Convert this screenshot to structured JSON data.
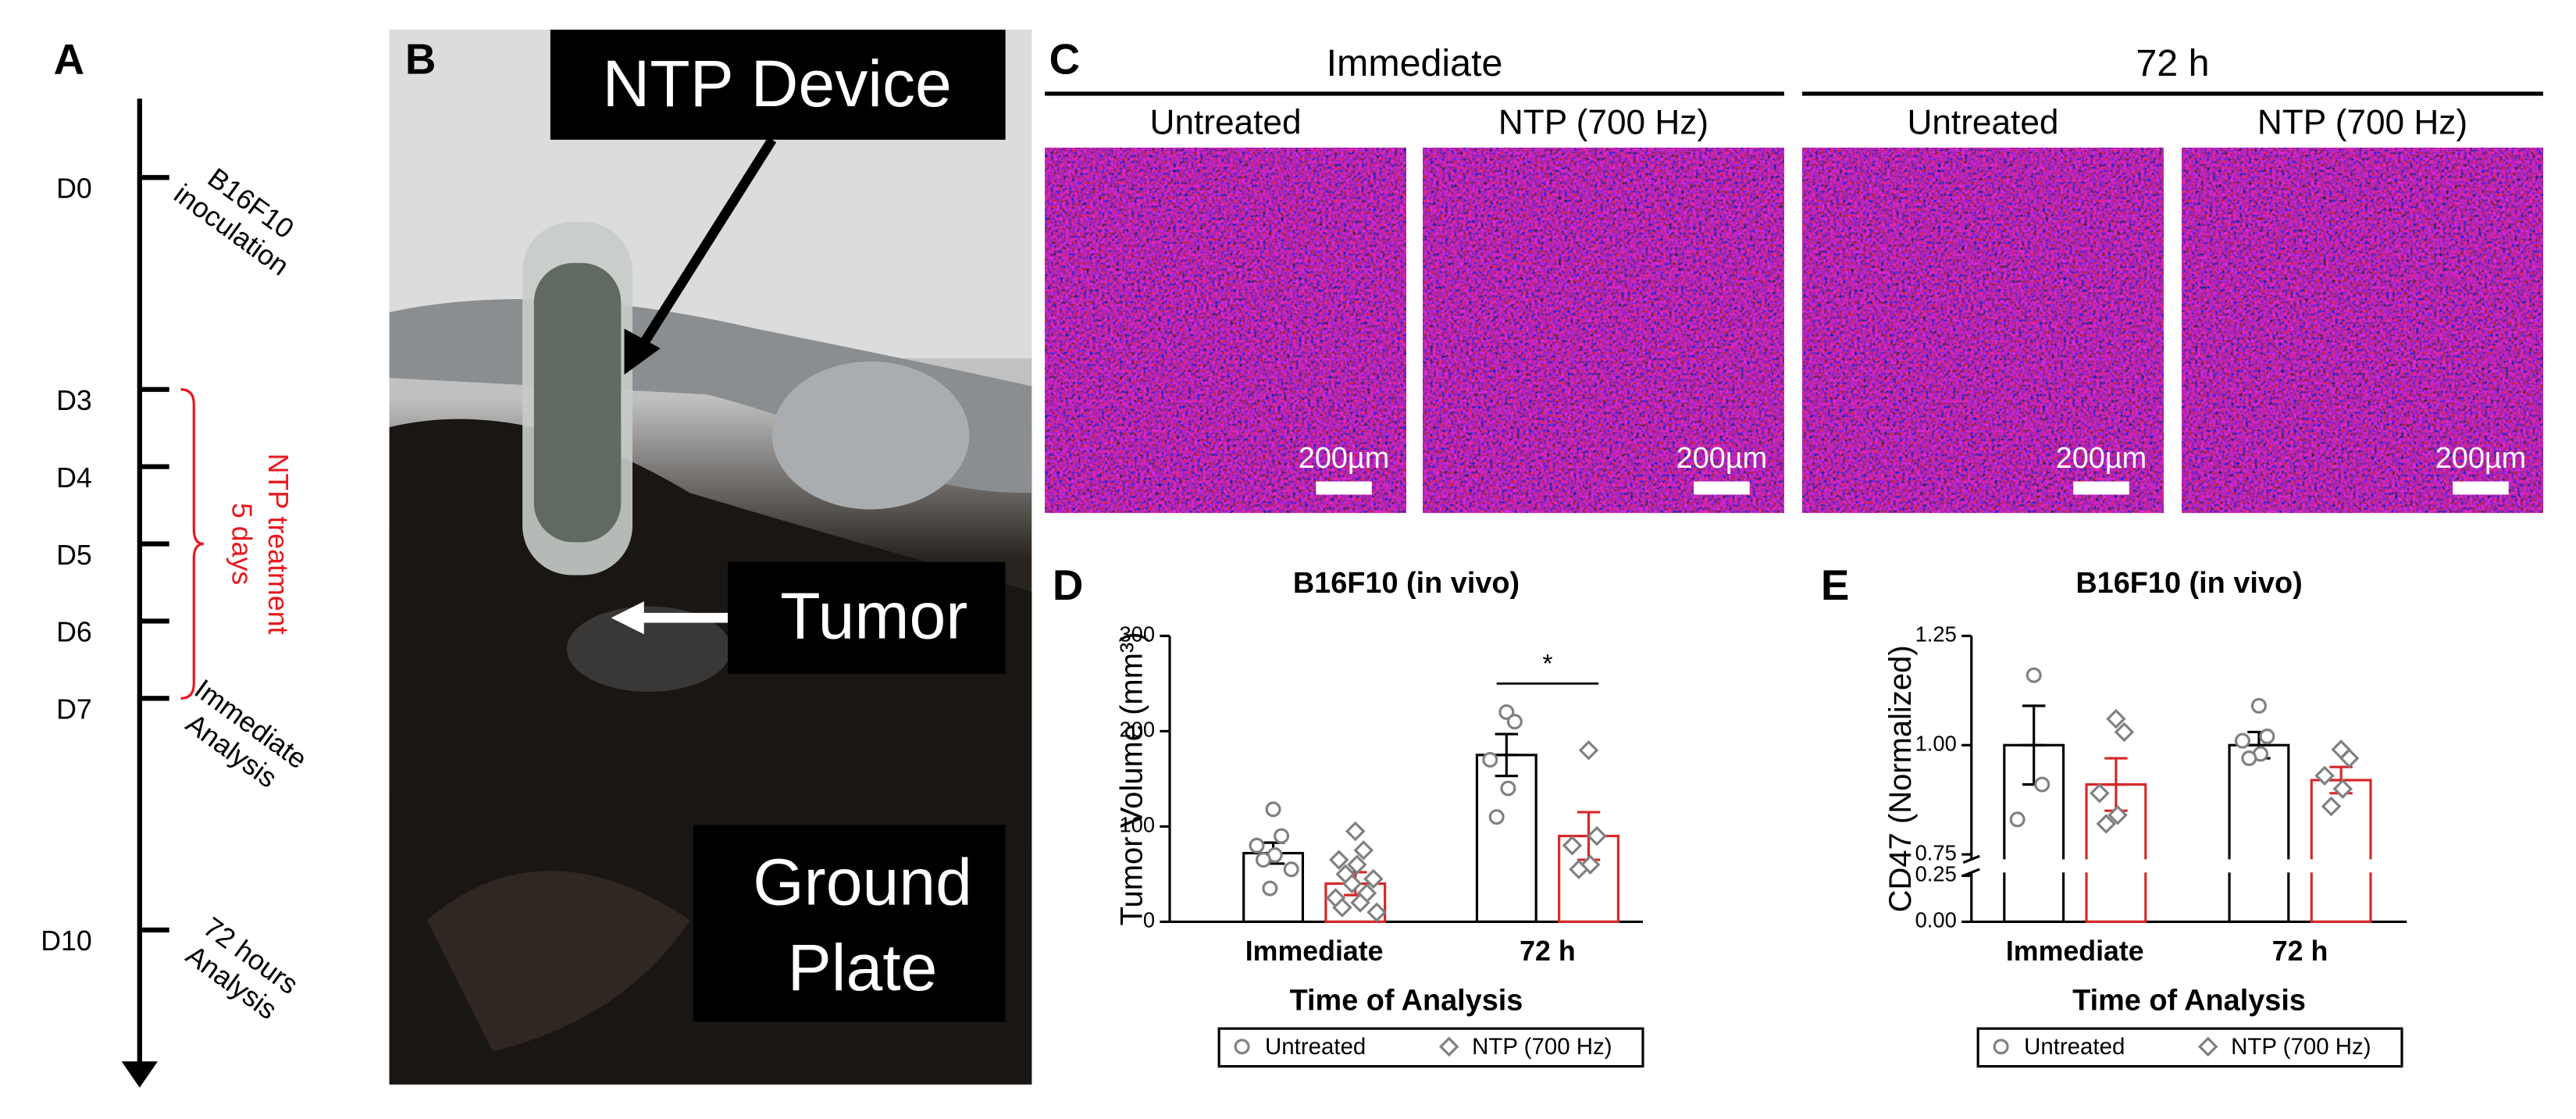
{
  "panel_a": {
    "label": "A",
    "timeline": [
      {
        "day": "D0",
        "note": [
          "B16F10",
          "inoculation"
        ]
      },
      {
        "day": "D3"
      },
      {
        "day": "D4"
      },
      {
        "day": "D5"
      },
      {
        "day": "D6"
      },
      {
        "day": "D7",
        "note": [
          "Immediate",
          "Analysis"
        ]
      },
      {
        "day": "D10",
        "note": [
          "72 hours",
          "Analysis"
        ]
      }
    ],
    "treatment": [
      "NTP treatment",
      "5 days"
    ]
  },
  "panel_b": {
    "label": "B",
    "device": "NTP Device",
    "tumor": "Tumor",
    "plate": [
      "Ground",
      "Plate"
    ]
  },
  "panel_c": {
    "label": "C",
    "groups": [
      {
        "title": "Immediate",
        "images": [
          {
            "title": "Untreated",
            "scale": "200µm"
          },
          {
            "title": "NTP (700 Hz)",
            "scale": "200µm"
          }
        ]
      },
      {
        "title": "72 h",
        "images": [
          {
            "title": "Untreated",
            "scale": "200µm"
          },
          {
            "title": "NTP (700 Hz)",
            "scale": "200µm"
          }
        ]
      }
    ]
  },
  "chart_data": [
    {
      "type": "bar",
      "label": "D",
      "title": "B16F10 (in vivo)",
      "y_label": "Tumor Volume (mm³)",
      "x_label": "Time of Analysis",
      "categories": [
        "Immediate",
        "72 h"
      ],
      "ylim": [
        0,
        300
      ],
      "yticks": [
        0,
        100,
        200,
        300
      ],
      "point_color": "#808080",
      "series": [
        {
          "name": "Untreated",
          "color": "#000000",
          "marker": "circle",
          "values": [
            72,
            175
          ],
          "errors": [
            11,
            22
          ],
          "points": [
            [
              118,
              90,
              80,
              70,
              65,
              55,
              35
            ],
            [
              220,
              210,
              170,
              140,
              110
            ]
          ]
        },
        {
          "name": "NTP (700 Hz)",
          "color": "#d62728",
          "marker": "diamond",
          "values": [
            40,
            90
          ],
          "errors": [
            12,
            25
          ],
          "points": [
            [
              95,
              75,
              65,
              60,
              50,
              45,
              40,
              30,
              25,
              20,
              15,
              10
            ],
            [
              180,
              90,
              80,
              60,
              55
            ]
          ]
        }
      ],
      "significance": {
        "text": "*"
      },
      "legend": "bottom"
    },
    {
      "type": "bar",
      "label": "E",
      "title": "B16F10 (in vivo)",
      "y_label": "CD47 (Normalized)",
      "x_label": "Time of Analysis",
      "categories": [
        "Immediate",
        "72 h"
      ],
      "ylim": [
        0,
        1.25
      ],
      "axis_break": [
        0.25,
        0.75
      ],
      "yticks": [
        {
          "value": 0,
          "label": "0.00"
        },
        {
          "value": 0.25,
          "label": "0.25"
        },
        {
          "value": 0.75,
          "label": "0.75"
        },
        {
          "value": 1,
          "label": "1.00"
        },
        {
          "value": 1.25,
          "label": "1.25"
        }
      ],
      "point_color": "#808080",
      "series": [
        {
          "name": "Untreated",
          "color": "#000000",
          "marker": "circle",
          "values": [
            1.0,
            1.0
          ],
          "errors": [
            0.09,
            0.03
          ],
          "points": [
            [
              1.16,
              0.91,
              0.83
            ],
            [
              1.09,
              1.02,
              1.01,
              0.98,
              0.97
            ]
          ]
        },
        {
          "name": "NTP (700 Hz)",
          "color": "#d62728",
          "marker": "diamond",
          "values": [
            0.91,
            0.92
          ],
          "errors": [
            0.06,
            0.03
          ],
          "points": [
            [
              1.06,
              1.03,
              0.89,
              0.84,
              0.82
            ],
            [
              0.99,
              0.97,
              0.93,
              0.9,
              0.86
            ]
          ]
        }
      ],
      "legend": "bottom"
    }
  ]
}
